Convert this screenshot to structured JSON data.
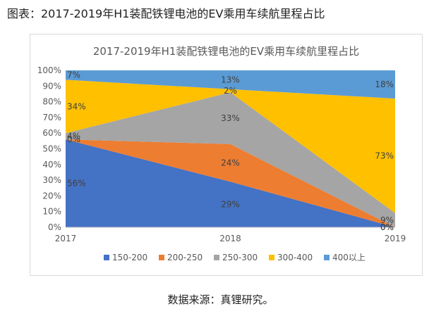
{
  "caption": "图表：2017-2019年H1装配铁锂电池的EV乘用车续航里程占比",
  "source": "数据来源：真锂研究。",
  "chart_data": {
    "type": "area",
    "stacked": true,
    "title": "2017-2019年H1装配铁锂电池的EV乘用车续航里程占比",
    "x": [
      "2017",
      "2018",
      "2019"
    ],
    "y_ticks": [
      "0%",
      "10%",
      "20%",
      "30%",
      "40%",
      "50%",
      "60%",
      "70%",
      "80%",
      "90%",
      "100%"
    ],
    "ylim": [
      0,
      100
    ],
    "legend_position": "bottom",
    "series": [
      {
        "name": "150-200",
        "color": "#4472c4",
        "values": [
          56,
          29,
          0
        ],
        "labels": [
          "56%",
          "29%",
          "0%"
        ]
      },
      {
        "name": "200-250",
        "color": "#ed7d31",
        "values": [
          0,
          24,
          0
        ],
        "labels": [
          "0%",
          "24%",
          "0%"
        ]
      },
      {
        "name": "250-300",
        "color": "#a5a5a5",
        "values": [
          4,
          33,
          9
        ],
        "labels": [
          "4%",
          "33%",
          "9%"
        ]
      },
      {
        "name": "300-400",
        "color": "#ffc000",
        "values": [
          34,
          2,
          73
        ],
        "labels": [
          "34%",
          "2%",
          "73%"
        ]
      },
      {
        "name": "400以上",
        "color": "#5b9bd5",
        "values": [
          7,
          13,
          18
        ],
        "labels": [
          "7%",
          "13%",
          "18%"
        ]
      }
    ]
  }
}
